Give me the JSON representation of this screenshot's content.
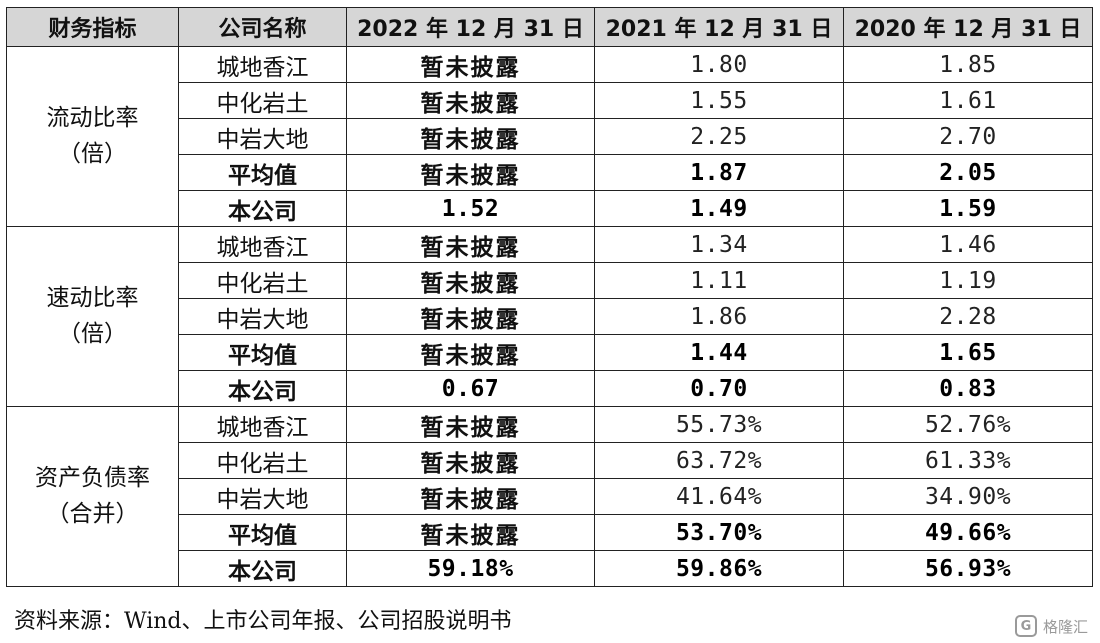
{
  "header": [
    "财务指标",
    "公司名称",
    "2022 年 12 月 31 日",
    "2021 年 12 月 31 日",
    "2020 年 12 月 31 日"
  ],
  "groups": [
    {
      "metric": "流动比率",
      "unit": "（倍）",
      "rows": [
        {
          "company": "城地香江",
          "v2022": "暂未披露",
          "v2021": "1.80",
          "v2020": "1.85",
          "bold": false
        },
        {
          "company": "中化岩土",
          "v2022": "暂未披露",
          "v2021": "1.55",
          "v2020": "1.61",
          "bold": false
        },
        {
          "company": "中岩大地",
          "v2022": "暂未披露",
          "v2021": "2.25",
          "v2020": "2.70",
          "bold": false
        },
        {
          "company": "平均值",
          "v2022": "暂未披露",
          "v2021": "1.87",
          "v2020": "2.05",
          "bold": true
        },
        {
          "company": "本公司",
          "v2022": "1.52",
          "v2021": "1.49",
          "v2020": "1.59",
          "bold": true
        }
      ]
    },
    {
      "metric": "速动比率",
      "unit": "（倍）",
      "rows": [
        {
          "company": "城地香江",
          "v2022": "暂未披露",
          "v2021": "1.34",
          "v2020": "1.46",
          "bold": false
        },
        {
          "company": "中化岩土",
          "v2022": "暂未披露",
          "v2021": "1.11",
          "v2020": "1.19",
          "bold": false
        },
        {
          "company": "中岩大地",
          "v2022": "暂未披露",
          "v2021": "1.86",
          "v2020": "2.28",
          "bold": false
        },
        {
          "company": "平均值",
          "v2022": "暂未披露",
          "v2021": "1.44",
          "v2020": "1.65",
          "bold": true
        },
        {
          "company": "本公司",
          "v2022": "0.67",
          "v2021": "0.70",
          "v2020": "0.83",
          "bold": true
        }
      ]
    },
    {
      "metric": "资产负债率",
      "unit": "（合并）",
      "rows": [
        {
          "company": "城地香江",
          "v2022": "暂未披露",
          "v2021": "55.73%",
          "v2020": "52.76%",
          "bold": false
        },
        {
          "company": "中化岩土",
          "v2022": "暂未披露",
          "v2021": "63.72%",
          "v2020": "61.33%",
          "bold": false
        },
        {
          "company": "中岩大地",
          "v2022": "暂未披露",
          "v2021": "41.64%",
          "v2020": "34.90%",
          "bold": false
        },
        {
          "company": "平均值",
          "v2022": "暂未披露",
          "v2021": "53.70%",
          "v2020": "49.66%",
          "bold": true
        },
        {
          "company": "本公司",
          "v2022": "59.18%",
          "v2021": "59.86%",
          "v2020": "56.93%",
          "bold": true
        }
      ]
    }
  ],
  "source": "资料来源：Wind、上市公司年报、公司招股说明书",
  "watermark": {
    "logo": "G",
    "text": "格隆汇"
  }
}
